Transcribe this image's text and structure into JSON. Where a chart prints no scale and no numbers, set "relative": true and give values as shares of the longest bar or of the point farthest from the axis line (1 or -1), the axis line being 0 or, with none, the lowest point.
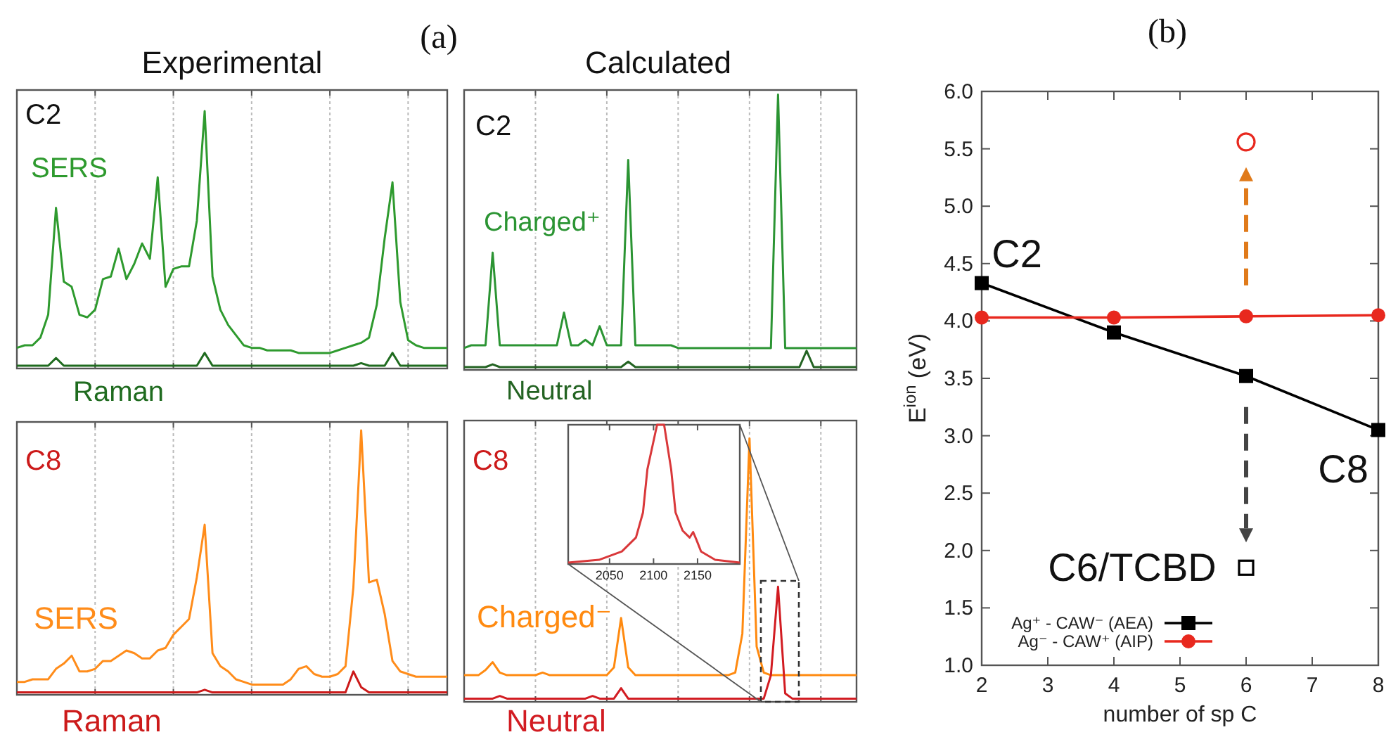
{
  "chart_data": [
    {
      "type": "line",
      "title": "Experimental",
      "relative": true,
      "categories": [
        null,
        null,
        null,
        null,
        null,
        null,
        null,
        null,
        null,
        null,
        null,
        null,
        null,
        null,
        null,
        null,
        null,
        null,
        null,
        null,
        null,
        null,
        null,
        null,
        null,
        null,
        null,
        null,
        null,
        null,
        null,
        null,
        null,
        null,
        null,
        null,
        null,
        null,
        null,
        null,
        null,
        null,
        null,
        null,
        null,
        null,
        null,
        null,
        null,
        null,
        null,
        null,
        null,
        null,
        null,
        null
      ],
      "grid": "x",
      "annotations": [
        "C2",
        "(a)"
      ],
      "series": [
        {
          "name": "SERS",
          "color": "#2e9a2e",
          "values": [
            0.07,
            0.08,
            0.08,
            0.11,
            0.2,
            0.62,
            0.33,
            0.31,
            0.2,
            0.19,
            0.22,
            0.34,
            0.35,
            0.46,
            0.34,
            0.4,
            0.48,
            0.42,
            0.74,
            0.31,
            0.38,
            0.39,
            0.39,
            0.57,
            1,
            0.35,
            0.22,
            0.16,
            0.12,
            0.08,
            0.07,
            0.07,
            0.06,
            0.06,
            0.06,
            0.06,
            0.05,
            0.05,
            0.05,
            0.05,
            0.05,
            0.06,
            0.07,
            0.08,
            0.09,
            0.11,
            0.24,
            0.5,
            0.72,
            0.25,
            0.1,
            0.08,
            0.07,
            0.07,
            0.07,
            0.07
          ]
        },
        {
          "name": "Raman",
          "color": "#1f6b1f",
          "values": [
            0,
            0,
            0,
            0,
            0,
            0.03,
            0,
            0,
            0,
            0,
            0,
            0,
            0,
            0,
            0,
            0,
            0,
            0,
            0,
            0,
            0,
            0,
            0,
            0,
            0.05,
            0,
            0,
            0,
            0,
            0,
            0,
            0,
            0,
            0,
            0,
            0,
            0,
            0,
            0,
            0,
            0,
            0,
            0,
            0,
            0.01,
            0,
            0,
            0,
            0.05,
            0,
            0,
            0,
            0,
            0,
            0,
            0
          ]
        }
      ]
    },
    {
      "type": "line",
      "title": "Calculated",
      "relative": true,
      "categories": [
        null,
        null,
        null,
        null,
        null,
        null,
        null,
        null,
        null,
        null,
        null,
        null,
        null,
        null,
        null,
        null,
        null,
        null,
        null,
        null,
        null,
        null,
        null,
        null,
        null,
        null,
        null,
        null,
        null,
        null,
        null,
        null,
        null,
        null,
        null,
        null,
        null,
        null,
        null,
        null,
        null,
        null,
        null,
        null,
        null,
        null,
        null,
        null,
        null,
        null,
        null,
        null,
        null,
        null,
        null,
        null
      ],
      "grid": "x",
      "annotations": [
        "C2"
      ],
      "series": [
        {
          "name": "Charged⁺",
          "color": "#2b9433",
          "values": [
            0.07,
            0.08,
            0.08,
            0.08,
            0.42,
            0.08,
            0.08,
            0.08,
            0.08,
            0.08,
            0.08,
            0.08,
            0.08,
            0.08,
            0.2,
            0.08,
            0.08,
            0.1,
            0.08,
            0.15,
            0.08,
            0.08,
            0.08,
            0.76,
            0.08,
            0.08,
            0.08,
            0.08,
            0.08,
            0.08,
            0.07,
            0.07,
            0.07,
            0.07,
            0.07,
            0.07,
            0.07,
            0.07,
            0.07,
            0.07,
            0.07,
            0.07,
            0.07,
            0.07,
            1,
            0.07,
            0.07,
            0.07,
            0.07,
            0.07,
            0.07,
            0.07,
            0.07,
            0.07,
            0.07,
            0.07
          ]
        },
        {
          "name": "Neutral",
          "color": "#236322",
          "values": [
            0,
            0,
            0,
            0,
            0.01,
            0,
            0,
            0,
            0,
            0,
            0,
            0,
            0,
            0,
            0,
            0,
            0,
            0,
            0,
            0,
            0,
            0,
            0,
            0.02,
            0,
            0,
            0,
            0,
            0,
            0,
            0,
            0,
            0,
            0,
            0,
            0,
            0,
            0,
            0,
            0,
            0,
            0,
            0,
            0,
            0,
            0,
            0,
            0,
            0.06,
            0,
            0,
            0,
            0,
            0,
            0,
            0
          ]
        }
      ]
    },
    {
      "type": "line",
      "relative": true,
      "categories": [
        null,
        null,
        null,
        null,
        null,
        null,
        null,
        null,
        null,
        null,
        null,
        null,
        null,
        null,
        null,
        null,
        null,
        null,
        null,
        null,
        null,
        null,
        null,
        null,
        null,
        null,
        null,
        null,
        null,
        null,
        null,
        null,
        null,
        null,
        null,
        null,
        null,
        null,
        null,
        null,
        null,
        null,
        null,
        null,
        null,
        null,
        null,
        null,
        null,
        null,
        null,
        null,
        null,
        null,
        null,
        null
      ],
      "grid": "x",
      "annotations": [
        "C8"
      ],
      "series": [
        {
          "name": "SERS",
          "color": "#ff8c1a",
          "values": [
            0.04,
            0.04,
            0.05,
            0.05,
            0.05,
            0.09,
            0.11,
            0.14,
            0.08,
            0.08,
            0.09,
            0.12,
            0.12,
            0.14,
            0.16,
            0.15,
            0.13,
            0.13,
            0.16,
            0.17,
            0.22,
            0.25,
            0.28,
            0.44,
            0.64,
            0.15,
            0.1,
            0.08,
            0.05,
            0.04,
            0.03,
            0.03,
            0.03,
            0.03,
            0.03,
            0.05,
            0.09,
            0.1,
            0.07,
            0.06,
            0.06,
            0.07,
            0.1,
            0.4,
            1,
            0.42,
            0.43,
            0.3,
            0.12,
            0.08,
            0.07,
            0.06,
            0.06,
            0.06,
            0.06,
            0.06
          ]
        },
        {
          "name": "Raman",
          "color": "#cc1a1a",
          "values": [
            0,
            0,
            0,
            0,
            0,
            0,
            0,
            0,
            0,
            0,
            0,
            0,
            0,
            0,
            0,
            0,
            0,
            0,
            0,
            0,
            0,
            0,
            0,
            0,
            0.01,
            0,
            0,
            0,
            0,
            0,
            0,
            0,
            0,
            0,
            0,
            0,
            0,
            0,
            0,
            0,
            0,
            0,
            0,
            0.08,
            0.02,
            0,
            0,
            0,
            0,
            0,
            0,
            0,
            0,
            0,
            0,
            0
          ]
        }
      ]
    },
    {
      "type": "line",
      "relative": true,
      "categories": [
        null,
        null,
        null,
        null,
        null,
        null,
        null,
        null,
        null,
        null,
        null,
        null,
        null,
        null,
        null,
        null,
        null,
        null,
        null,
        null,
        null,
        null,
        null,
        null,
        null,
        null,
        null,
        null,
        null,
        null,
        null,
        null,
        null,
        null,
        null,
        null,
        null,
        null,
        null,
        null,
        null,
        null,
        null,
        null,
        null,
        null,
        null,
        null,
        null,
        null,
        null,
        null,
        null,
        null,
        null,
        null
      ],
      "grid": "x",
      "annotations": [
        "C8"
      ],
      "series": [
        {
          "name": "Charged⁻",
          "color": "#ff8a10",
          "values": [
            0.09,
            0.09,
            0.09,
            0.11,
            0.14,
            0.1,
            0.09,
            0.09,
            0.09,
            0.09,
            0.09,
            0.1,
            0.09,
            0.09,
            0.09,
            0.09,
            0.09,
            0.09,
            0.09,
            0.09,
            0.09,
            0.12,
            0.31,
            0.12,
            0.09,
            0.09,
            0.09,
            0.09,
            0.09,
            0.09,
            0.09,
            0.09,
            0.09,
            0.09,
            0.09,
            0.09,
            0.09,
            0.09,
            0.1,
            0.25,
            1,
            0.2,
            0.1,
            0.09,
            0.09,
            0.09,
            0.09,
            0.09,
            0.09,
            0.09,
            0.09,
            0.09,
            0.09,
            0.09,
            0.09,
            0.09
          ]
        },
        {
          "name": "Neutral",
          "color": "#d21c22",
          "values": [
            0,
            0,
            0,
            0,
            0,
            0.01,
            0,
            0,
            0,
            0,
            0,
            0,
            0,
            0,
            0,
            0,
            0,
            0,
            0.01,
            0,
            0,
            0,
            0.04,
            0,
            0,
            0,
            0,
            0,
            0,
            0,
            0,
            0,
            0,
            0,
            0,
            0,
            0,
            0,
            0,
            0,
            0,
            0,
            0,
            0.09,
            0.43,
            0.02,
            0,
            0,
            0,
            0,
            0,
            0,
            0,
            0,
            0,
            0
          ]
        }
      ]
    },
    {
      "type": "line",
      "relative": true,
      "xlim": [
        2003,
        2198
      ],
      "xticks": [
        2050,
        2100,
        2150
      ],
      "tick_labels": "x",
      "series": [
        {
          "color": "#d9383a",
          "x": [
            2003,
            2038,
            2064,
            2080,
            2088,
            2093,
            2104,
            2107,
            2112,
            2120,
            2125,
            2133,
            2141,
            2145,
            2149,
            2154,
            2170,
            2198
          ],
          "values": [
            0.01,
            0.03,
            0.09,
            0.19,
            0.37,
            0.68,
            1,
            1,
            1,
            0.68,
            0.37,
            0.24,
            0.19,
            0.23,
            0.17,
            0.09,
            0.03,
            0.01
          ]
        }
      ]
    },
    {
      "type": "line",
      "title": "(b)",
      "xlabel": "number of sp C",
      "ylabel": "E$^{ion}$ (eV)",
      "xlim": [
        2,
        8
      ],
      "ylim": [
        1,
        6
      ],
      "xticks": [
        2,
        3,
        4,
        5,
        6,
        7,
        8
      ],
      "yticks": [
        {
          "value": 1,
          "label": "1.0"
        },
        {
          "value": 1.5,
          "label": "1.5"
        },
        {
          "value": 2,
          "label": "2.0"
        },
        {
          "value": 2.5,
          "label": "2.5"
        },
        {
          "value": 3,
          "label": "3.0"
        },
        {
          "value": 3.5,
          "label": "3.5"
        },
        {
          "value": 4,
          "label": "4.0"
        },
        {
          "value": 4.5,
          "label": "4.5"
        },
        {
          "value": 5,
          "label": "5.0"
        },
        {
          "value": 5.5,
          "label": "5.5"
        },
        {
          "value": 6,
          "label": "6.0"
        }
      ],
      "legend": "bottom left",
      "annotations": [
        "C2",
        "C8",
        "C6/TCBD"
      ],
      "series": [
        {
          "name": "Ag⁺ - CAW⁻ (AEA)",
          "color": "#000000",
          "marker": "square",
          "x": [
            2,
            4,
            6,
            8
          ],
          "values": [
            4.33,
            3.9,
            3.52,
            3.05
          ]
        },
        {
          "name": "Ag⁻ - CAW⁺ (AIP)",
          "color": "#e8281e",
          "marker": "circle",
          "x": [
            2,
            4,
            6,
            8
          ],
          "values": [
            4.03,
            4.03,
            4.04,
            4.05
          ]
        },
        {
          "type": "scatter",
          "color": "#e8281e",
          "marker": "circle",
          "x": [
            6
          ],
          "values": [
            5.56
          ]
        },
        {
          "type": "scatter",
          "color": "#000000",
          "marker": "square",
          "x": [
            6
          ],
          "values": [
            1.85
          ]
        }
      ]
    }
  ]
}
